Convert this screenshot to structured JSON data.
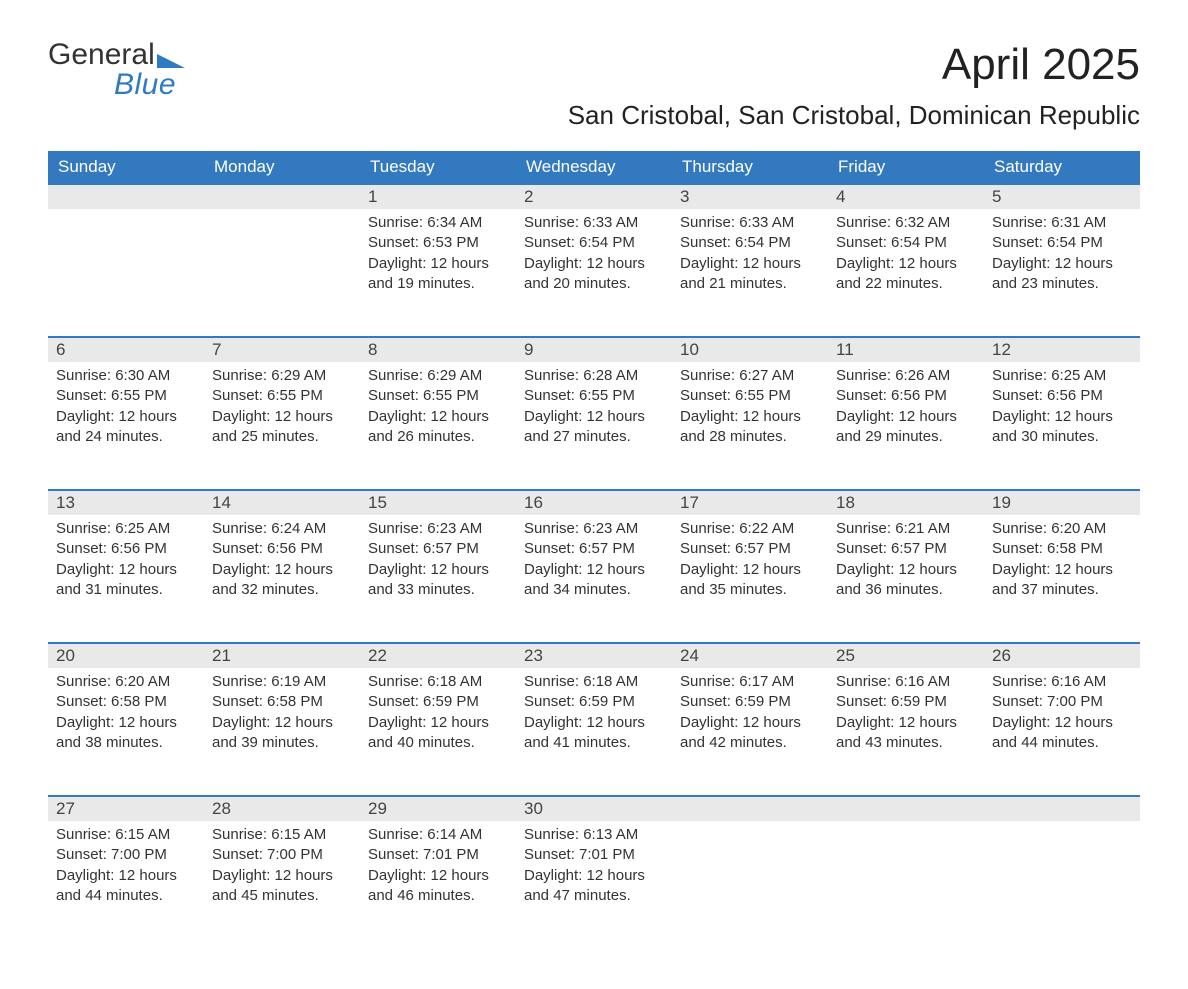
{
  "logo": {
    "word1": "General",
    "word2": "Blue"
  },
  "title": "April 2025",
  "location": "San Cristobal, San Cristobal, Dominican Republic",
  "colors": {
    "header_bg": "#3279bf",
    "header_text": "#ffffff",
    "daynum_bg": "#e9e9e9",
    "row_border": "#3279bf",
    "logo_accent": "#2f7bc3",
    "body_text": "#333333",
    "background": "#ffffff"
  },
  "weekdays": [
    "Sunday",
    "Monday",
    "Tuesday",
    "Wednesday",
    "Thursday",
    "Friday",
    "Saturday"
  ],
  "cells": [
    {
      "day": "",
      "lines": []
    },
    {
      "day": "",
      "lines": []
    },
    {
      "day": "1",
      "lines": [
        "Sunrise: 6:34 AM",
        "Sunset: 6:53 PM",
        "Daylight: 12 hours and 19 minutes."
      ]
    },
    {
      "day": "2",
      "lines": [
        "Sunrise: 6:33 AM",
        "Sunset: 6:54 PM",
        "Daylight: 12 hours and 20 minutes."
      ]
    },
    {
      "day": "3",
      "lines": [
        "Sunrise: 6:33 AM",
        "Sunset: 6:54 PM",
        "Daylight: 12 hours and 21 minutes."
      ]
    },
    {
      "day": "4",
      "lines": [
        "Sunrise: 6:32 AM",
        "Sunset: 6:54 PM",
        "Daylight: 12 hours and 22 minutes."
      ]
    },
    {
      "day": "5",
      "lines": [
        "Sunrise: 6:31 AM",
        "Sunset: 6:54 PM",
        "Daylight: 12 hours and 23 minutes."
      ]
    },
    {
      "day": "6",
      "lines": [
        "Sunrise: 6:30 AM",
        "Sunset: 6:55 PM",
        "Daylight: 12 hours and 24 minutes."
      ]
    },
    {
      "day": "7",
      "lines": [
        "Sunrise: 6:29 AM",
        "Sunset: 6:55 PM",
        "Daylight: 12 hours and 25 minutes."
      ]
    },
    {
      "day": "8",
      "lines": [
        "Sunrise: 6:29 AM",
        "Sunset: 6:55 PM",
        "Daylight: 12 hours and 26 minutes."
      ]
    },
    {
      "day": "9",
      "lines": [
        "Sunrise: 6:28 AM",
        "Sunset: 6:55 PM",
        "Daylight: 12 hours and 27 minutes."
      ]
    },
    {
      "day": "10",
      "lines": [
        "Sunrise: 6:27 AM",
        "Sunset: 6:55 PM",
        "Daylight: 12 hours and 28 minutes."
      ]
    },
    {
      "day": "11",
      "lines": [
        "Sunrise: 6:26 AM",
        "Sunset: 6:56 PM",
        "Daylight: 12 hours and 29 minutes."
      ]
    },
    {
      "day": "12",
      "lines": [
        "Sunrise: 6:25 AM",
        "Sunset: 6:56 PM",
        "Daylight: 12 hours and 30 minutes."
      ]
    },
    {
      "day": "13",
      "lines": [
        "Sunrise: 6:25 AM",
        "Sunset: 6:56 PM",
        "Daylight: 12 hours and 31 minutes."
      ]
    },
    {
      "day": "14",
      "lines": [
        "Sunrise: 6:24 AM",
        "Sunset: 6:56 PM",
        "Daylight: 12 hours and 32 minutes."
      ]
    },
    {
      "day": "15",
      "lines": [
        "Sunrise: 6:23 AM",
        "Sunset: 6:57 PM",
        "Daylight: 12 hours and 33 minutes."
      ]
    },
    {
      "day": "16",
      "lines": [
        "Sunrise: 6:23 AM",
        "Sunset: 6:57 PM",
        "Daylight: 12 hours and 34 minutes."
      ]
    },
    {
      "day": "17",
      "lines": [
        "Sunrise: 6:22 AM",
        "Sunset: 6:57 PM",
        "Daylight: 12 hours and 35 minutes."
      ]
    },
    {
      "day": "18",
      "lines": [
        "Sunrise: 6:21 AM",
        "Sunset: 6:57 PM",
        "Daylight: 12 hours and 36 minutes."
      ]
    },
    {
      "day": "19",
      "lines": [
        "Sunrise: 6:20 AM",
        "Sunset: 6:58 PM",
        "Daylight: 12 hours and 37 minutes."
      ]
    },
    {
      "day": "20",
      "lines": [
        "Sunrise: 6:20 AM",
        "Sunset: 6:58 PM",
        "Daylight: 12 hours and 38 minutes."
      ]
    },
    {
      "day": "21",
      "lines": [
        "Sunrise: 6:19 AM",
        "Sunset: 6:58 PM",
        "Daylight: 12 hours and 39 minutes."
      ]
    },
    {
      "day": "22",
      "lines": [
        "Sunrise: 6:18 AM",
        "Sunset: 6:59 PM",
        "Daylight: 12 hours and 40 minutes."
      ]
    },
    {
      "day": "23",
      "lines": [
        "Sunrise: 6:18 AM",
        "Sunset: 6:59 PM",
        "Daylight: 12 hours and 41 minutes."
      ]
    },
    {
      "day": "24",
      "lines": [
        "Sunrise: 6:17 AM",
        "Sunset: 6:59 PM",
        "Daylight: 12 hours and 42 minutes."
      ]
    },
    {
      "day": "25",
      "lines": [
        "Sunrise: 6:16 AM",
        "Sunset: 6:59 PM",
        "Daylight: 12 hours and 43 minutes."
      ]
    },
    {
      "day": "26",
      "lines": [
        "Sunrise: 6:16 AM",
        "Sunset: 7:00 PM",
        "Daylight: 12 hours and 44 minutes."
      ]
    },
    {
      "day": "27",
      "lines": [
        "Sunrise: 6:15 AM",
        "Sunset: 7:00 PM",
        "Daylight: 12 hours and 44 minutes."
      ]
    },
    {
      "day": "28",
      "lines": [
        "Sunrise: 6:15 AM",
        "Sunset: 7:00 PM",
        "Daylight: 12 hours and 45 minutes."
      ]
    },
    {
      "day": "29",
      "lines": [
        "Sunrise: 6:14 AM",
        "Sunset: 7:01 PM",
        "Daylight: 12 hours and 46 minutes."
      ]
    },
    {
      "day": "30",
      "lines": [
        "Sunrise: 6:13 AM",
        "Sunset: 7:01 PM",
        "Daylight: 12 hours and 47 minutes."
      ]
    },
    {
      "day": "",
      "lines": []
    },
    {
      "day": "",
      "lines": []
    },
    {
      "day": "",
      "lines": []
    }
  ]
}
